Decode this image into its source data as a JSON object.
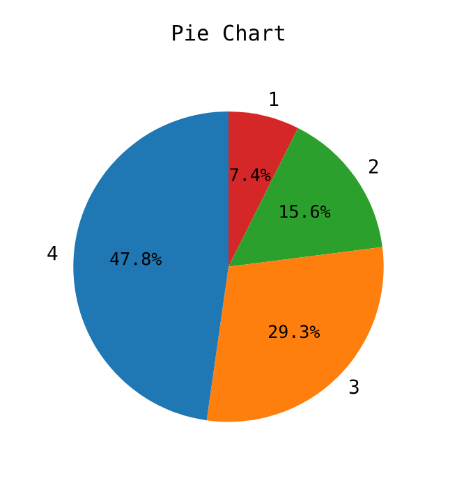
{
  "chart_data": {
    "type": "pie",
    "title": "Pie Chart",
    "categories": [
      "1",
      "2",
      "3",
      "4"
    ],
    "values": [
      7.4,
      15.6,
      29.3,
      47.8
    ],
    "value_labels": [
      "7.4%",
      "15.6%",
      "29.3%",
      "47.8%"
    ],
    "colors": [
      "#d62728",
      "#2ca02c",
      "#ff7f0e",
      "#1f77b4"
    ]
  }
}
